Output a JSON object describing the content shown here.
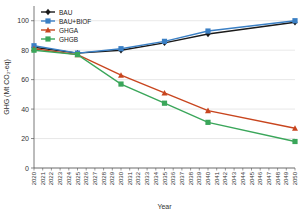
{
  "chart_data": {
    "type": "line",
    "x_label": "Year",
    "y_label": "GHG (Mt CO₂-eq)",
    "x": [
      2020,
      2025,
      2030,
      2035,
      2040,
      2050
    ],
    "xlim": [
      2020,
      2050
    ],
    "xticks": [
      2020,
      2021,
      2022,
      2023,
      2024,
      2025,
      2026,
      2027,
      2028,
      2029,
      2030,
      2031,
      2032,
      2033,
      2034,
      2035,
      2036,
      2037,
      2038,
      2039,
      2040,
      2041,
      2042,
      2043,
      2044,
      2045,
      2046,
      2047,
      2048,
      2049,
      2050
    ],
    "ylim": [
      0,
      110
    ],
    "yticks": [
      0,
      20,
      40,
      60,
      80,
      100
    ],
    "grid": true,
    "legend": "top-left",
    "series": [
      {
        "name": "BAU",
        "color": "#1a1a1a",
        "marker": "diamond",
        "values": [
          82,
          78,
          80,
          85,
          91,
          99
        ]
      },
      {
        "name": "BAU+BIOF",
        "color": "#3a7fc4",
        "marker": "square",
        "values": [
          83,
          78,
          81,
          86,
          93,
          100
        ]
      },
      {
        "name": "GHGA",
        "color": "#c8451e",
        "marker": "triangle",
        "values": [
          81,
          77,
          63,
          51,
          39,
          27
        ]
      },
      {
        "name": "GHGB",
        "color": "#3aa65a",
        "marker": "square",
        "values": [
          80,
          77,
          57,
          44,
          31,
          18
        ]
      }
    ]
  }
}
